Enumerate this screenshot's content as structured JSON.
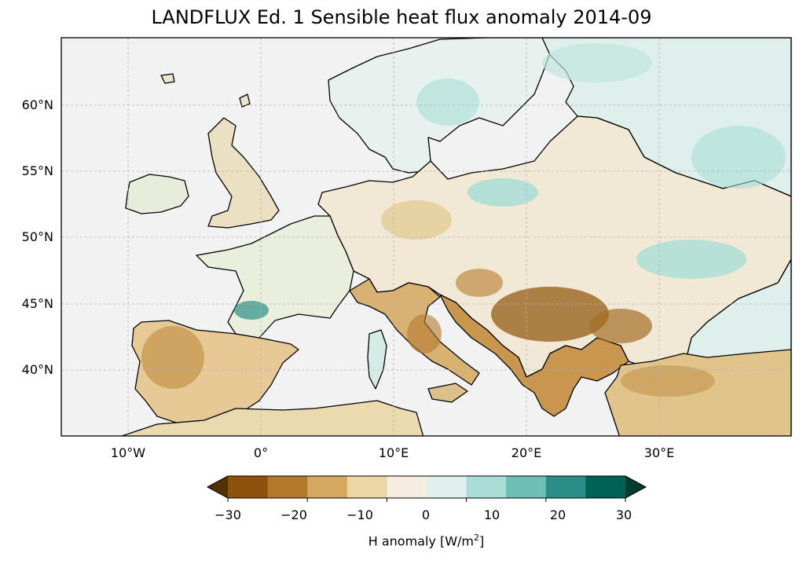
{
  "title": "LANDFLUX Ed. 1 Sensible heat flux anomaly 2014-09",
  "map": {
    "type": "filled-contour-map",
    "region": "Europe",
    "lat_ticks": [
      "60°N",
      "55°N",
      "50°N",
      "45°N",
      "40°N"
    ],
    "lon_ticks": [
      "10°W",
      "0°",
      "10°E",
      "20°E",
      "30°E"
    ],
    "gridlines": true,
    "ocean_color": "#f2f2f2",
    "coastline_color": "#000000"
  },
  "colorbar": {
    "tick_labels": [
      "−30",
      "−20",
      "−10",
      "0",
      "10",
      "20",
      "30"
    ],
    "label_prefix": "H anomaly [W/m",
    "label_sup": "2",
    "label_suffix": "]",
    "extend": "both",
    "colors": [
      "#543005",
      "#8c510a",
      "#bf812d",
      "#dfc27d",
      "#f6e8c3",
      "#f5f5f5",
      "#c7eae5",
      "#80cdc1",
      "#35978f",
      "#01665e",
      "#003c30"
    ],
    "bin_colors": [
      "#543005",
      "#8c510a",
      "#b3792a",
      "#d4a85f",
      "#ecd6a5",
      "#f4ede0",
      "#dff0ef",
      "#a9ddd6",
      "#6cbfb4",
      "#2b8e86",
      "#006156",
      "#003c30"
    ]
  }
}
